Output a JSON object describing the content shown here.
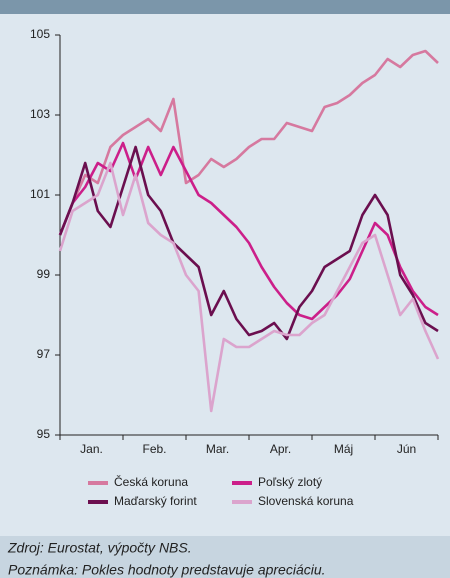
{
  "chart_data": {
    "type": "line",
    "x": [
      0,
      0.2,
      0.4,
      0.6,
      0.8,
      1,
      1.2,
      1.4,
      1.6,
      1.8,
      2,
      2.2,
      2.4,
      2.6,
      2.8,
      3,
      3.2,
      3.4,
      3.6,
      3.8,
      4,
      4.2,
      4.4,
      4.6,
      4.8,
      5,
      5.2,
      5.4,
      5.6,
      5.8,
      6
    ],
    "xlim": [
      0,
      6
    ],
    "xticks": [
      {
        "value": 0.5,
        "label": "Jan."
      },
      {
        "value": 1.5,
        "label": "Feb."
      },
      {
        "value": 2.5,
        "label": "Mar."
      },
      {
        "value": 3.5,
        "label": "Apr."
      },
      {
        "value": 4.5,
        "label": "Máj"
      },
      {
        "value": 5.5,
        "label": "Jún"
      }
    ],
    "ylim": [
      95,
      105
    ],
    "yticks": [
      95,
      97,
      99,
      101,
      103,
      105
    ],
    "grid": false,
    "series": [
      {
        "name": "Česká koruna",
        "color": "#d6799f",
        "values": [
          100.0,
          100.8,
          101.5,
          101.3,
          102.2,
          102.5,
          102.7,
          102.9,
          102.6,
          103.4,
          101.3,
          101.5,
          101.9,
          101.7,
          101.9,
          102.2,
          102.4,
          102.4,
          102.8,
          102.7,
          102.6,
          103.2,
          103.3,
          103.5,
          103.8,
          104.0,
          104.4,
          104.2,
          104.5,
          104.6,
          104.3
        ]
      },
      {
        "name": "Poľský zlotý",
        "color": "#cc1f8a",
        "values": [
          100.0,
          100.8,
          101.2,
          101.8,
          101.6,
          102.3,
          101.4,
          102.2,
          101.5,
          102.2,
          101.6,
          101.0,
          100.8,
          100.5,
          100.2,
          99.8,
          99.2,
          98.7,
          98.3,
          98.0,
          97.9,
          98.2,
          98.5,
          98.9,
          99.6,
          100.3,
          100.0,
          99.2,
          98.6,
          98.2,
          98.0
        ]
      },
      {
        "name": "Maďarský forint",
        "color": "#6b0f4f",
        "values": [
          100.0,
          100.8,
          101.8,
          100.6,
          100.2,
          101.2,
          102.2,
          101.0,
          100.6,
          99.8,
          99.5,
          99.2,
          98.0,
          98.6,
          97.9,
          97.5,
          97.6,
          97.8,
          97.4,
          98.2,
          98.6,
          99.2,
          99.4,
          99.6,
          100.5,
          101.0,
          100.5,
          99.0,
          98.5,
          97.8,
          97.6
        ]
      },
      {
        "name": "Slovenská koruna",
        "color": "#dba4cd",
        "values": [
          99.6,
          100.6,
          100.8,
          101.0,
          101.8,
          100.5,
          101.5,
          100.3,
          100.0,
          99.8,
          99.0,
          98.6,
          95.6,
          97.4,
          97.2,
          97.2,
          97.4,
          97.6,
          97.5,
          97.5,
          97.8,
          98.0,
          98.6,
          99.2,
          99.8,
          100.0,
          99.0,
          98.0,
          98.4,
          97.6,
          96.9
        ]
      }
    ],
    "legend": "bottom",
    "source": "Zdroj: Eurostat, výpočty NBS.",
    "note": "Poznámka: Pokles hodnoty predstavuje apreciáciu."
  }
}
